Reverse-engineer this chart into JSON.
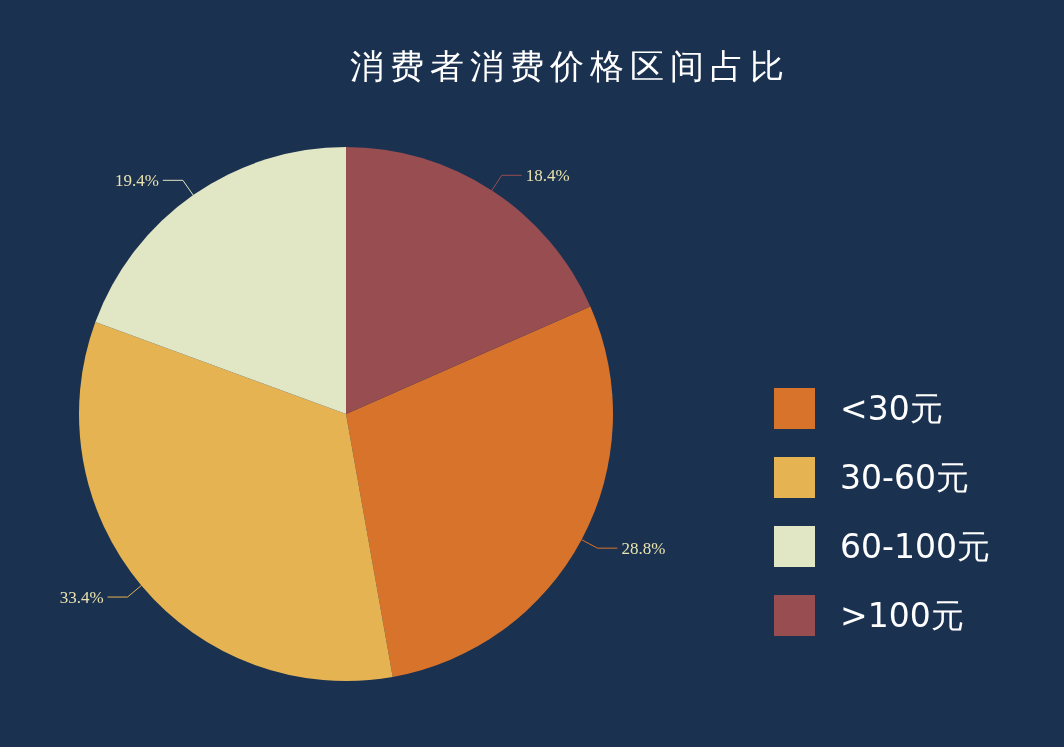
{
  "chart_data": {
    "type": "pie",
    "title": "消费者消费价格区间占比",
    "categories": [
      "<30元",
      "30-60元",
      "60-100元",
      ">100元"
    ],
    "values": [
      28.8,
      33.4,
      19.4,
      18.4
    ],
    "colors": [
      "#d8732b",
      "#e6b352",
      "#e1e6c4",
      "#984d51"
    ],
    "value_labels": [
      "28.8%",
      "33.4%",
      "19.4%",
      "18.4%"
    ],
    "legend": "right"
  }
}
